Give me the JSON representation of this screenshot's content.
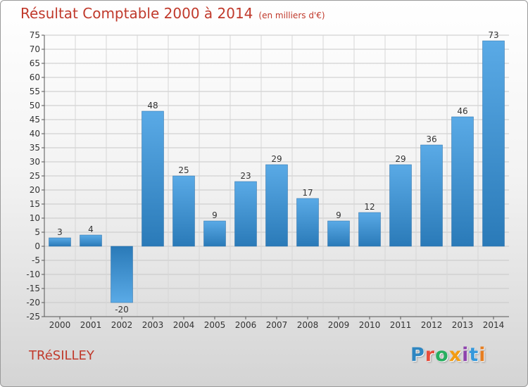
{
  "header": {
    "title": "Résultat Comptable 2000 à 2014",
    "subtitle": "(en milliers d'€)"
  },
  "footer": {
    "commune": "TRéSILLEY",
    "logo": {
      "letters": [
        "P",
        "r",
        "o",
        "x",
        "i",
        "t",
        "i"
      ],
      "colors": [
        "#2e86c1",
        "#e74c3c",
        "#27ae60",
        "#f39c12",
        "#8e44ad",
        "#3498db",
        "#e67e22"
      ]
    }
  },
  "colors": {
    "bar_dark": "#2a7ab8",
    "bar_light": "#5aaae6",
    "text": "#c0392b"
  },
  "chart_data": {
    "type": "bar",
    "title": "Résultat Comptable 2000 à 2014",
    "subtitle": "(en milliers d'€)",
    "categories": [
      "2000",
      "2001",
      "2002",
      "2003",
      "2004",
      "2005",
      "2006",
      "2007",
      "2008",
      "2009",
      "2010",
      "2011",
      "2012",
      "2013",
      "2014"
    ],
    "values": [
      3,
      4,
      -20,
      48,
      25,
      9,
      23,
      29,
      17,
      9,
      12,
      29,
      36,
      46,
      73
    ],
    "data_labels": [
      "3",
      "4",
      "-20",
      "48",
      "25",
      "9",
      "23",
      "29",
      "17",
      "9",
      "12",
      "29",
      "36",
      "46",
      "73"
    ],
    "ylim": [
      -25,
      75
    ],
    "ytick_step": 5,
    "yticks": [
      "-25",
      "-20",
      "-15",
      "-10",
      "-5",
      "0",
      "5",
      "10",
      "15",
      "20",
      "25",
      "30",
      "35",
      "40",
      "45",
      "50",
      "55",
      "60",
      "65",
      "70",
      "75"
    ],
    "grid": true,
    "xlabel": "",
    "ylabel": ""
  }
}
